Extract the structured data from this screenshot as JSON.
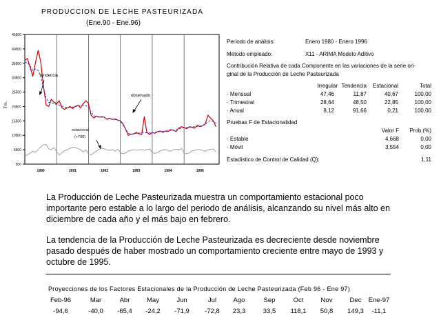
{
  "chart_data": {
    "type": "line",
    "title": "PRODUCCION DE LECHE PASTEURIZADA",
    "subtitle": "(Ene.90 - Ene.96)",
    "ylabel": "Tm.",
    "y_ticks": [
      500,
      5500,
      10500,
      15500,
      20500,
      25500,
      30500,
      35500,
      40500,
      45500
    ],
    "y_tick_labels": [
      "500",
      "5500",
      "10500",
      "15500",
      "20500",
      "25500",
      "30500",
      "35500",
      "40500",
      "45500"
    ],
    "ylim": [
      500,
      45500
    ],
    "x_tick_labels": [
      "1990",
      "1991",
      "1992",
      "1993",
      "1994",
      "1995"
    ],
    "x_range_years": [
      1990.0,
      1996.1
    ],
    "grid_vertical": true,
    "annotations": [
      {
        "text": "tendencia"
      },
      {
        "text": "observado"
      },
      {
        "text": "estacional"
      },
      {
        "text": "(+700)"
      }
    ],
    "series": [
      {
        "role": "observado",
        "color": "#cc0000",
        "x": [
          1990.0,
          1990.08,
          1990.17,
          1990.25,
          1990.33,
          1990.42,
          1990.5,
          1990.58,
          1990.67,
          1990.75,
          1990.83,
          1990.92,
          1991.0,
          1991.08,
          1991.17,
          1991.25,
          1991.33,
          1991.42,
          1991.5,
          1991.58,
          1991.67,
          1991.75,
          1991.83,
          1991.92,
          1992.0,
          1992.08,
          1992.17,
          1992.25,
          1992.33,
          1992.42,
          1992.5,
          1992.58,
          1992.67,
          1992.75,
          1992.83,
          1992.92,
          1993.0,
          1993.08,
          1993.17,
          1993.25,
          1993.33,
          1993.42,
          1993.5,
          1993.58,
          1993.67,
          1993.75,
          1993.83,
          1993.92,
          1994.0,
          1994.08,
          1994.17,
          1994.25,
          1994.33,
          1994.42,
          1994.5,
          1994.58,
          1994.67,
          1994.75,
          1994.83,
          1994.92,
          1995.0,
          1995.08,
          1995.17,
          1995.25,
          1995.33,
          1995.42,
          1995.5,
          1995.58,
          1995.67,
          1995.75,
          1995.83,
          1995.92,
          1996.0
        ],
        "values": [
          36500,
          37200,
          34000,
          31000,
          35500,
          40000,
          36000,
          28000,
          21000,
          20500,
          23000,
          22000,
          21500,
          22500,
          20000,
          19500,
          20000,
          20500,
          19800,
          20500,
          21000,
          20000,
          21500,
          22500,
          21500,
          17500,
          16500,
          17200,
          16800,
          17000,
          16800,
          16000,
          16400,
          16000,
          16200,
          15800,
          15500,
          14500,
          12500,
          10500,
          10800,
          11000,
          11500,
          11000,
          10800,
          17000,
          11500,
          10800,
          11500,
          11200,
          11800,
          12000,
          11500,
          12000,
          11800,
          12500,
          12200,
          11800,
          13000,
          13500,
          13200,
          12800,
          13500,
          13300,
          13000,
          14000,
          13500,
          13800,
          14500,
          17500,
          16500,
          15500,
          13500
        ]
      },
      {
        "role": "tendencia",
        "color": "#3333cc",
        "x": [
          1990.0,
          1990.08,
          1990.17,
          1990.25,
          1990.33,
          1990.42,
          1990.5,
          1990.58,
          1990.67,
          1990.75,
          1990.83,
          1990.92,
          1991.0,
          1991.08,
          1991.17,
          1991.25,
          1991.33,
          1991.42,
          1991.5,
          1991.58,
          1991.67,
          1991.75,
          1991.83,
          1991.92,
          1992.0,
          1992.08,
          1992.17,
          1992.25,
          1992.33,
          1992.42,
          1992.5,
          1992.58,
          1992.67,
          1992.75,
          1992.83,
          1992.92,
          1993.0,
          1993.08,
          1993.17,
          1993.25,
          1993.33,
          1993.42,
          1993.5,
          1993.58,
          1993.67,
          1993.75,
          1993.83,
          1993.92,
          1994.0,
          1994.08,
          1994.17,
          1994.25,
          1994.33,
          1994.42,
          1994.5,
          1994.58,
          1994.67,
          1994.75,
          1994.83,
          1994.92,
          1995.0,
          1995.08,
          1995.17,
          1995.25,
          1995.33,
          1995.42,
          1995.5,
          1995.58,
          1995.67,
          1995.75,
          1995.83,
          1995.92,
          1996.0
        ],
        "values": [
          36000,
          35800,
          34500,
          33000,
          33500,
          33000,
          31000,
          27000,
          23500,
          22000,
          21800,
          21500,
          21200,
          21000,
          20600,
          20300,
          20200,
          20200,
          20300,
          20500,
          20700,
          20900,
          21000,
          20800,
          20200,
          18500,
          17300,
          17000,
          16900,
          16800,
          16600,
          16400,
          16200,
          16100,
          16000,
          15800,
          15300,
          14200,
          12600,
          11200,
          10900,
          11000,
          11200,
          11300,
          11300,
          11400,
          11400,
          11300,
          11400,
          11500,
          11700,
          11800,
          11900,
          12000,
          12100,
          12200,
          12300,
          12400,
          12700,
          13000,
          13100,
          13200,
          13300,
          13400,
          13500,
          13600,
          13700,
          13900,
          14300,
          15200,
          15500,
          15300,
          14700
        ]
      },
      {
        "role": "estacional",
        "color": "#a0a0a0",
        "x": [
          1990.0,
          1990.08,
          1990.17,
          1990.25,
          1990.33,
          1990.42,
          1990.5,
          1990.58,
          1990.67,
          1990.75,
          1990.83,
          1990.92,
          1991.0,
          1991.08,
          1991.17,
          1991.25,
          1991.33,
          1991.42,
          1991.5,
          1991.58,
          1991.67,
          1991.75,
          1991.83,
          1991.92,
          1992.0,
          1992.08,
          1992.17,
          1992.25,
          1992.33,
          1992.42,
          1992.5,
          1992.58,
          1992.67,
          1992.75,
          1992.83,
          1992.92,
          1993.0,
          1993.08,
          1993.17,
          1993.25,
          1993.33,
          1993.42,
          1993.5,
          1993.58,
          1993.67,
          1993.75,
          1993.83,
          1993.92,
          1994.0,
          1994.08,
          1994.17,
          1994.25,
          1994.33,
          1994.42,
          1994.5,
          1994.58,
          1994.67,
          1994.75,
          1994.83,
          1994.92,
          1995.0,
          1995.08,
          1995.17,
          1995.25,
          1995.33,
          1995.42,
          1995.5,
          1995.58,
          1995.67,
          1995.75,
          1995.83,
          1995.92,
          1996.0
        ],
        "values": [
          3200,
          3800,
          4300,
          5000,
          4600,
          5600,
          6500,
          7200,
          7300,
          5800,
          5500,
          6300,
          4800,
          3600,
          4500,
          5200,
          5500,
          6000,
          6400,
          6300,
          5900,
          5500,
          4700,
          5400,
          4100,
          3700,
          4400,
          5000,
          5600,
          6000,
          5800,
          5400,
          5300,
          5600,
          5000,
          5700,
          4500,
          4100,
          4400,
          5000,
          5300,
          5500,
          5300,
          5400,
          5600,
          5300,
          5500,
          5800,
          4600,
          4200,
          4500,
          5100,
          5400,
          5600,
          5200,
          5000,
          5500,
          5700,
          5400,
          5900,
          4400,
          4100,
          4400,
          5100,
          5300,
          5500,
          5600,
          5200,
          5000,
          5400,
          5600,
          5800,
          4700
        ]
      }
    ]
  },
  "info": {
    "periodo_label": "Periodo de análisis:",
    "periodo_value": "Enero 1980 - Enero 1996",
    "metodo_label": "Método empleado:",
    "metodo_value": "X11 - ARIMA Modelo Aditivo",
    "contrib_line1": "Contribución Relativa de cada Componente en las variaciones de la serie ori-",
    "contrib_line2": "ginal de la Producción de Leche Pasteurizada",
    "contrib_headers": [
      "Irregular",
      "Tendencia",
      "Estacional",
      "Total"
    ],
    "contrib_rows": [
      {
        "label": "· Mensual",
        "values": [
          "47,46",
          "11,87",
          "40,67",
          "100,00"
        ]
      },
      {
        "label": "· Trimestral",
        "values": [
          "28,64",
          "48,50",
          "22,85",
          "100,00"
        ]
      },
      {
        "label": "· Anual",
        "values": [
          "8,12",
          "91,66",
          "0,21",
          "100,00"
        ]
      }
    ],
    "pruebas_title": "Pruebas F de Estacionalidad",
    "pruebas_headers": [
      "Valor F",
      "Prob.(%)"
    ],
    "pruebas_rows": [
      {
        "label": "· Estable",
        "values": [
          "4,668",
          "0,00"
        ]
      },
      {
        "label": "· Móvil",
        "values": [
          "3,554",
          "0,00"
        ]
      }
    ],
    "calidad_label": "Estadístico de Control de Calidad (Q):",
    "calidad_value": "1,11"
  },
  "text": {
    "paragraph1": "La Producción de Leche Pasteurizada  muestra un comportamiento estacional poco importante pero estable a lo largo del periodo de análisis, alcanzando su nivel  más alto en diciembre de cada año y el  más bajo en febrero.",
    "paragraph2": "La tendencia de la Producción de Leche Pasteurizada es decreciente desde noviembre pasado después de haber mostrado un comportamiento creciente entre mayo de 1993 y octubre de 1995."
  },
  "projections": {
    "title": "Proyecciones de los Factores Estacionales de la Producción de Leche Pasteurizada (Feb 96 - Ene 97)",
    "months": [
      "Feb-96",
      "Mar",
      "Abr",
      "May",
      "Jun",
      "Jul",
      "Ago",
      "Sep",
      "Oct",
      "Nov",
      "Dec",
      "Ene-97"
    ],
    "values": [
      "-94,6",
      "-40,0",
      "-65,4",
      "-24,2",
      "-71,9",
      "-72,8",
      "23,3",
      "33,5",
      "118,1",
      "50,8",
      "149,3",
      "-11,1"
    ]
  }
}
